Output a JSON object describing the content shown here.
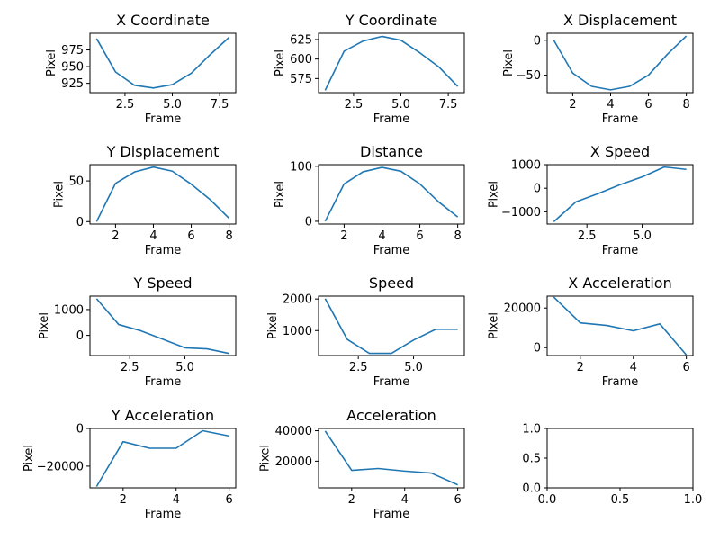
{
  "style": {
    "line_color": "#1f77b4",
    "grid": false
  },
  "chart_data": [
    {
      "type": "line",
      "title": "X Coordinate",
      "xlabel": "Frame",
      "ylabel": "Pixel",
      "x": [
        1,
        2,
        3,
        4,
        5,
        6,
        7,
        8
      ],
      "series": [
        {
          "values": [
            992,
            942,
            922,
            918,
            923,
            940,
            968,
            994
          ]
        }
      ],
      "xlim": [
        0.65,
        8.35
      ],
      "ylim": [
        911,
        1000
      ],
      "xticks": [
        2.5,
        5.0,
        7.5
      ],
      "xtick_labels": [
        "2.5",
        "5.0",
        "7.5"
      ],
      "yticks": [
        925,
        950,
        975
      ],
      "ytick_labels": [
        "925",
        "950",
        "975"
      ]
    },
    {
      "type": "line",
      "title": "Y Coordinate",
      "xlabel": "Frame",
      "ylabel": "Pixel",
      "x": [
        1,
        2,
        3,
        4,
        5,
        6,
        7,
        8
      ],
      "series": [
        {
          "values": [
            560,
            610,
            623,
            629,
            624,
            608,
            590,
            565
          ]
        }
      ],
      "xlim": [
        0.65,
        8.35
      ],
      "ylim": [
        557,
        633
      ],
      "xticks": [
        2.5,
        5.0,
        7.5
      ],
      "xtick_labels": [
        "2.5",
        "5.0",
        "7.5"
      ],
      "yticks": [
        575,
        600,
        625
      ],
      "ytick_labels": [
        "575",
        "600",
        "625"
      ]
    },
    {
      "type": "line",
      "title": "X Displacement",
      "xlabel": "Frame",
      "ylabel": "Pixel",
      "x": [
        1,
        2,
        3,
        4,
        5,
        6,
        7,
        8
      ],
      "series": [
        {
          "values": [
            0,
            -47,
            -66,
            -71,
            -66,
            -50,
            -20,
            6
          ]
        }
      ],
      "xlim": [
        0.65,
        8.35
      ],
      "ylim": [
        -75,
        10
      ],
      "xticks": [
        2,
        4,
        6,
        8
      ],
      "xtick_labels": [
        "2",
        "4",
        "6",
        "8"
      ],
      "yticks": [
        -50,
        0
      ],
      "ytick_labels": [
        "−50",
        "0"
      ]
    },
    {
      "type": "line",
      "title": "Y Displacement",
      "xlabel": "Frame",
      "ylabel": "Pixel",
      "x": [
        1,
        2,
        3,
        4,
        5,
        6,
        7,
        8
      ],
      "series": [
        {
          "values": [
            0,
            47,
            61,
            67,
            62,
            46,
            27,
            4
          ]
        }
      ],
      "xlim": [
        0.65,
        8.35
      ],
      "ylim": [
        -3,
        70
      ],
      "xticks": [
        2,
        4,
        6,
        8
      ],
      "xtick_labels": [
        "2",
        "4",
        "6",
        "8"
      ],
      "yticks": [
        0,
        50
      ],
      "ytick_labels": [
        "0",
        "50"
      ]
    },
    {
      "type": "line",
      "title": "Distance",
      "xlabel": "Frame",
      "ylabel": "Pixel",
      "x": [
        1,
        2,
        3,
        4,
        5,
        6,
        7,
        8
      ],
      "series": [
        {
          "values": [
            0,
            68,
            90,
            98,
            91,
            68,
            35,
            8
          ]
        }
      ],
      "xlim": [
        0.65,
        8.35
      ],
      "ylim": [
        -5,
        103
      ],
      "xticks": [
        2,
        4,
        6,
        8
      ],
      "xtick_labels": [
        "2",
        "4",
        "6",
        "8"
      ],
      "yticks": [
        0,
        100
      ],
      "ytick_labels": [
        "0",
        "100"
      ]
    },
    {
      "type": "line",
      "title": "X Speed",
      "xlabel": "Frame",
      "ylabel": "Pixel",
      "x": [
        1,
        2,
        3,
        4,
        5,
        6,
        7
      ],
      "series": [
        {
          "values": [
            -1420,
            -580,
            -230,
            150,
            480,
            900,
            800
          ]
        }
      ],
      "xlim": [
        0.7,
        7.3
      ],
      "ylim": [
        -1520,
        1000
      ],
      "xticks": [
        2.5,
        5.0
      ],
      "xtick_labels": [
        "2.5",
        "5.0"
      ],
      "yticks": [
        -1000,
        0,
        1000
      ],
      "ytick_labels": [
        "−1000",
        "0",
        "1000"
      ]
    },
    {
      "type": "line",
      "title": "Y Speed",
      "xlabel": "Frame",
      "ylabel": "Pixel",
      "x": [
        1,
        2,
        3,
        4,
        5,
        6,
        7
      ],
      "series": [
        {
          "values": [
            1420,
            420,
            180,
            -150,
            -480,
            -520,
            -700
          ]
        }
      ],
      "xlim": [
        0.7,
        7.3
      ],
      "ylim": [
        -780,
        1520
      ],
      "xticks": [
        2.5,
        5.0
      ],
      "xtick_labels": [
        "2.5",
        "5.0"
      ],
      "yticks": [
        0,
        1000
      ],
      "ytick_labels": [
        "0",
        "1000"
      ]
    },
    {
      "type": "line",
      "title": "Speed",
      "xlabel": "Frame",
      "ylabel": "Pixel",
      "x": [
        1,
        2,
        3,
        4,
        5,
        6,
        7
      ],
      "series": [
        {
          "values": [
            2010,
            720,
            280,
            280,
            700,
            1040,
            1040
          ]
        }
      ],
      "xlim": [
        0.7,
        7.3
      ],
      "ylim": [
        210,
        2090
      ],
      "xticks": [
        2.5,
        5.0
      ],
      "xtick_labels": [
        "2.5",
        "5.0"
      ],
      "yticks": [
        1000,
        2000
      ],
      "ytick_labels": [
        "1000",
        "2000"
      ]
    },
    {
      "type": "line",
      "title": "X Acceleration",
      "xlabel": "Frame",
      "ylabel": "Pixel",
      "x": [
        1,
        2,
        3,
        4,
        5,
        6
      ],
      "series": [
        {
          "values": [
            25500,
            12500,
            11200,
            8500,
            12000,
            -3700
          ]
        }
      ],
      "xlim": [
        0.75,
        6.25
      ],
      "ylim": [
        -4000,
        26000
      ],
      "xticks": [
        2,
        4,
        6
      ],
      "xtick_labels": [
        "2",
        "4",
        "6"
      ],
      "yticks": [
        0,
        20000
      ],
      "ytick_labels": [
        "0",
        "20000"
      ]
    },
    {
      "type": "line",
      "title": "Y Acceleration",
      "xlabel": "Frame",
      "ylabel": "Pixel",
      "x": [
        1,
        2,
        3,
        4,
        5,
        6
      ],
      "series": [
        {
          "values": [
            -30800,
            -7000,
            -10500,
            -10500,
            -1200,
            -4000
          ]
        }
      ],
      "xlim": [
        0.75,
        6.25
      ],
      "ylim": [
        -31500,
        0
      ],
      "xticks": [
        2,
        4,
        6
      ],
      "xtick_labels": [
        "2",
        "4",
        "6"
      ],
      "yticks": [
        -20000,
        0
      ],
      "ytick_labels": [
        "−20000",
        "0"
      ]
    },
    {
      "type": "line",
      "title": "Acceleration",
      "xlabel": "Frame",
      "ylabel": "Pixel",
      "x": [
        1,
        2,
        3,
        4,
        5,
        6
      ],
      "series": [
        {
          "values": [
            39800,
            14000,
            15200,
            13500,
            12200,
            4500
          ]
        }
      ],
      "xlim": [
        0.75,
        6.25
      ],
      "ylim": [
        2500,
        41500
      ],
      "xticks": [
        2,
        4,
        6
      ],
      "xtick_labels": [
        "2",
        "4",
        "6"
      ],
      "yticks": [
        20000,
        40000
      ],
      "ytick_labels": [
        "20000",
        "40000"
      ]
    },
    {
      "type": "line",
      "title": "",
      "xlabel": "",
      "ylabel": "",
      "x": [],
      "series": [],
      "xlim": [
        0.0,
        1.0
      ],
      "ylim": [
        0.0,
        1.0
      ],
      "xticks": [
        0.0,
        0.5,
        1.0
      ],
      "xtick_labels": [
        "0.0",
        "0.5",
        "1.0"
      ],
      "yticks": [
        0.0,
        0.5,
        1.0
      ],
      "ytick_labels": [
        "0.0",
        "0.5",
        "1.0"
      ]
    }
  ]
}
